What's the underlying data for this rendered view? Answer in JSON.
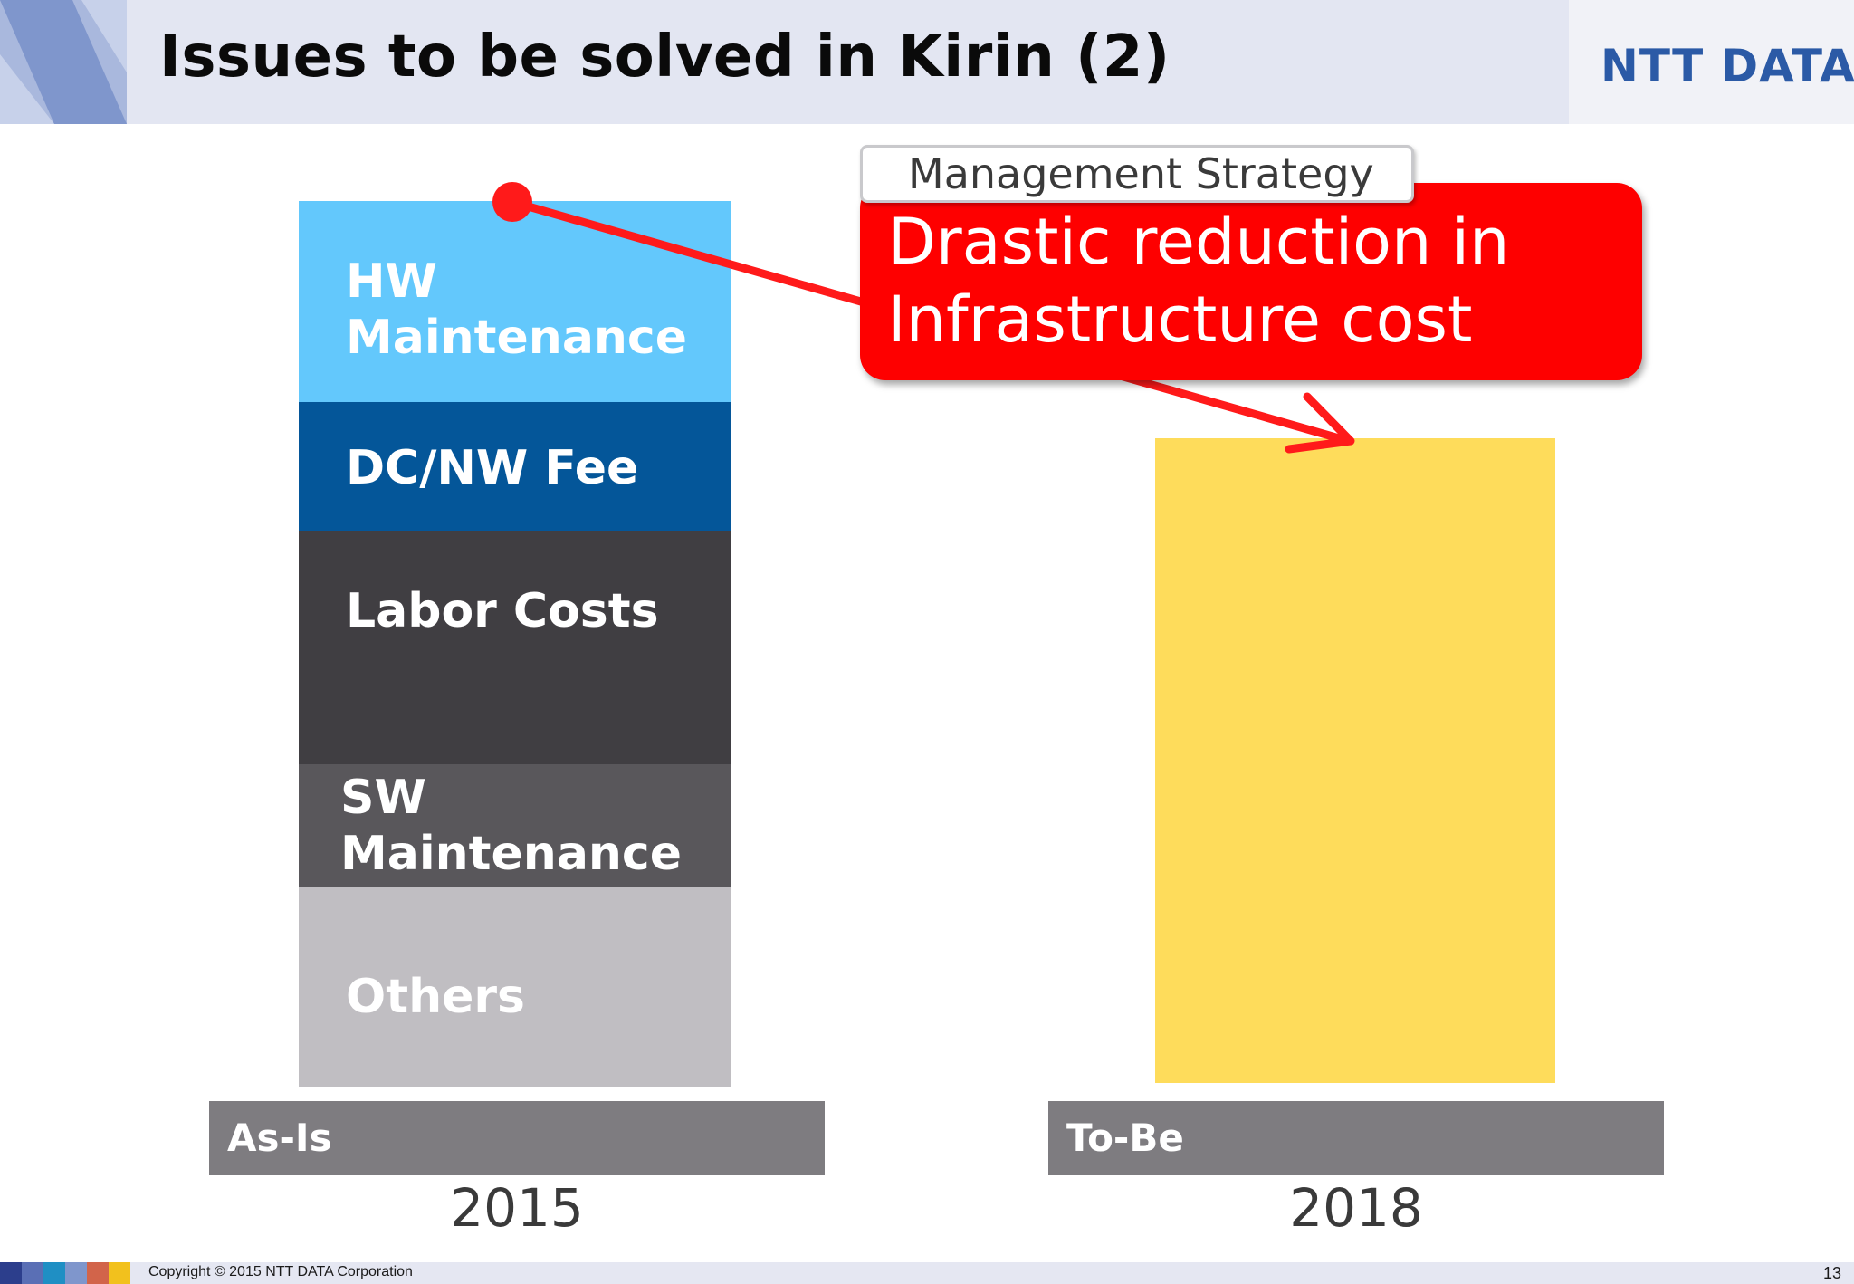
{
  "header": {
    "title": "Issues to be solved in Kirin (2)",
    "logo_text": "NTT DATA"
  },
  "as_is": {
    "segments": [
      {
        "label": "HW\nMaintenance",
        "color": "#63c8fc"
      },
      {
        "label": "DC/NW Fee",
        "color": "#045699"
      },
      {
        "label": "Labor Costs",
        "color": "#403e42"
      },
      {
        "label": "SW\nMaintenance",
        "color": "#59575b"
      },
      {
        "label": "Others",
        "color": "#c0bec2"
      }
    ],
    "scenario_label": "As-Is",
    "year": "2015"
  },
  "to_be": {
    "scenario_label": "To-Be",
    "year": "2018",
    "color": "#fedc5b"
  },
  "callout": {
    "tag": "Management Strategy",
    "text": "Drastic reduction in\nInfrastructure cost",
    "color": "#fe0000"
  },
  "footer": {
    "copyright": "Copyright © 2015 NTT DATA Corporation",
    "page_number": "13"
  }
}
